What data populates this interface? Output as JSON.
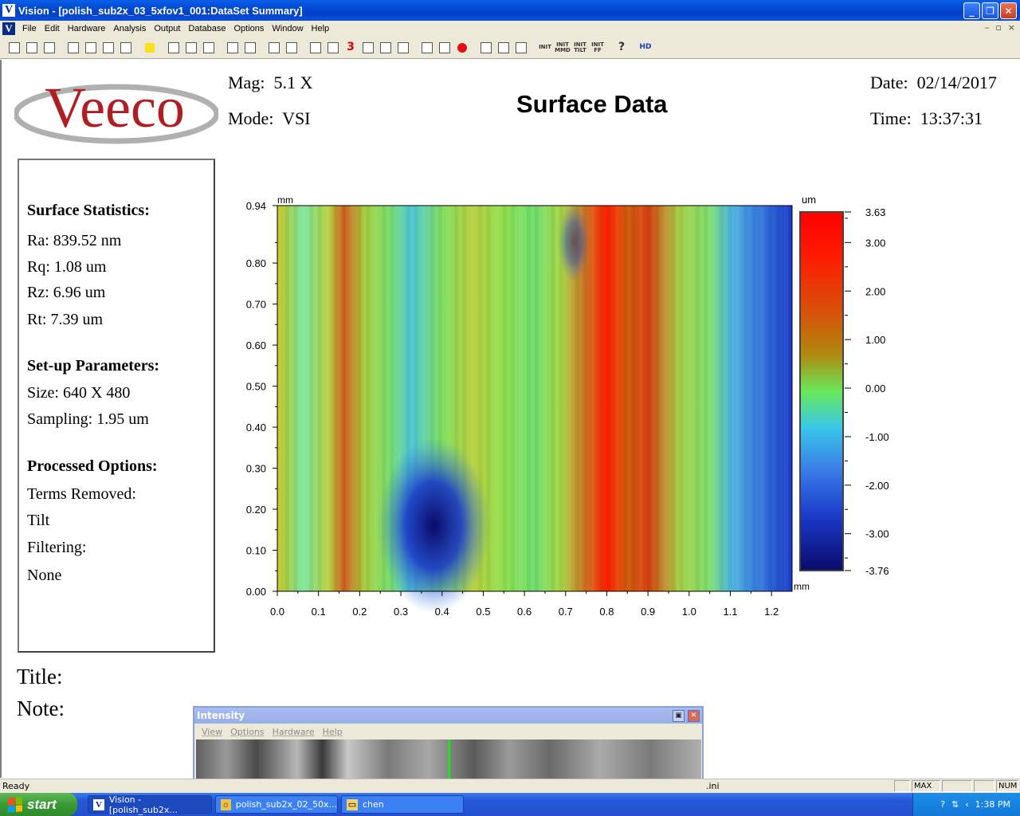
{
  "window": {
    "title": "Vision - [polish_sub2x_03_5xfov1_001:DataSet Summary]",
    "app_icon": "V",
    "controls": [
      "minimize-icon",
      "restore-icon",
      "close-icon"
    ]
  },
  "menubar": {
    "doc_icon": "V",
    "items": [
      "File",
      "Edit",
      "Hardware",
      "Analysis",
      "Output",
      "Database",
      "Options",
      "Window",
      "Help"
    ],
    "mdi_controls": [
      "–",
      "▫",
      "×"
    ]
  },
  "toolbar": {
    "icons": [
      "new-icon",
      "open-icon",
      "save-icon",
      "pdf-icon",
      "report-icon",
      "print-icon",
      "page-icon",
      "sun-icon",
      "map-icon",
      "list-icon",
      "dots-icon",
      "table-icon",
      "table2-icon",
      "ruler-icon",
      "copy-icon",
      "contour-icon",
      "profile-icon",
      "3d-icon",
      "cursor-icon",
      "histogram-icon",
      "curve-icon",
      "frame-icon",
      "tilt-icon",
      "record-icon",
      "align-icon",
      "pointer-icon",
      "flask-icon",
      "init-icon",
      "init-mmd-icon",
      "init-tilt-icon",
      "init-ff-icon",
      "help-icon",
      "hd-icon"
    ],
    "labels": {
      "init_mmd": "INIT MMD",
      "init_tilt": "INIT TILT",
      "init_ff": "INIT FF",
      "hd": "HD",
      "three_d": "3"
    }
  },
  "header": {
    "logo_text": "Veeco",
    "mag_label": "Mag:",
    "mag_value": "5.1 X",
    "mode_label": "Mode:",
    "mode_value": "VSI",
    "title": "Surface Data",
    "date_label": "Date:",
    "date_value": "02/14/2017",
    "time_label": "Time:",
    "time_value": "13:37:31"
  },
  "stats": {
    "surface_heading": "Surface Statistics:",
    "ra": "Ra:  839.52 nm",
    "rq": "Rq:  1.08 um",
    "rz": "Rz:  6.96 um",
    "rt": "Rt:  7.39 um",
    "setup_heading": "Set-up Parameters:",
    "size": "Size: 640 X 480",
    "sampling": "Sampling:  1.95 um",
    "processed_heading": "Processed Options:",
    "terms_removed": "Terms Removed:",
    "terms_value": "Tilt",
    "filtering": "Filtering:",
    "filtering_value": "None"
  },
  "plot": {
    "x_unit": "mm",
    "y_unit": "mm",
    "colorbar_unit": "um",
    "x_ticks": [
      "0.0",
      "0.1",
      "0.2",
      "0.3",
      "0.4",
      "0.5",
      "0.6",
      "0.7",
      "0.8",
      "0.9",
      "1.0",
      "1.1",
      "1.2"
    ],
    "y_ticks": [
      "0.00",
      "0.10",
      "0.20",
      "0.30",
      "0.40",
      "0.50",
      "0.60",
      "0.70",
      "0.80",
      "0.94"
    ],
    "colorbar_ticks": [
      "3.63",
      "3.00",
      "2.00",
      "1.00",
      "0.00",
      "-1.00",
      "-2.00",
      "-3.00",
      "-3.76"
    ],
    "x_range": [
      0.0,
      1.25
    ],
    "y_range": [
      0.0,
      0.94
    ],
    "z_range": [
      -3.76,
      3.63
    ]
  },
  "footer_fields": {
    "title_label": "Title:",
    "note_label": "Note:"
  },
  "intensity_window": {
    "title": "Intensity",
    "menu": [
      "View",
      "Options",
      "Hardware",
      "Help"
    ]
  },
  "statusbar": {
    "ready": "Ready",
    "ini_text": ".ini",
    "panes": [
      "",
      "MAX C",
      "",
      "",
      "NUM"
    ]
  },
  "taskbar": {
    "start_label": "start",
    "buttons": [
      {
        "label": "Vision - [polish_sub2x...",
        "icon": "V"
      },
      {
        "label": "polish_sub2x_02_50x...",
        "icon": "☼"
      },
      {
        "label": "chen",
        "icon": "▭"
      }
    ],
    "clock": "1:38 PM"
  },
  "colors": {
    "titlebar": "#0041c8",
    "logo_red": "#b01e23",
    "logo_gray": "#b0b0b0"
  }
}
